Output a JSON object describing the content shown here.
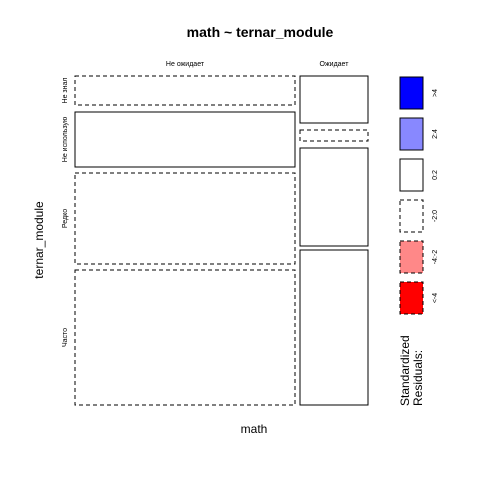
{
  "chart_data": {
    "type": "mosaic",
    "title": "math ~ ternar_module",
    "xlabel": "math",
    "ylabel": "ternar_module",
    "x_categories": [
      "Не ожидает",
      "Ожидает"
    ],
    "y_categories": [
      "Не знал",
      "Не использую",
      "Редко",
      "Часто"
    ],
    "cells": [
      {
        "y": "Не знал",
        "x": "Не ожидает",
        "residual_class": "-2:0"
      },
      {
        "y": "Не знал",
        "x": "Ожидает",
        "residual_class": "0:2"
      },
      {
        "y": "Не использую",
        "x": "Не ожидает",
        "residual_class": "0:2"
      },
      {
        "y": "Не использую",
        "x": "Ожидает",
        "residual_class": "-2:0"
      },
      {
        "y": "Редко",
        "x": "Не ожидает",
        "residual_class": "-2:0"
      },
      {
        "y": "Редко",
        "x": "Ожидает",
        "residual_class": "0:2"
      },
      {
        "y": "Часто",
        "x": "Не ожидает",
        "residual_class": "-2:0"
      },
      {
        "y": "Часто",
        "x": "Ожидает",
        "residual_class": "0:2"
      }
    ],
    "legend": {
      "title_lines": [
        "Standardized",
        "Residuals:"
      ],
      "placement": "right",
      "items": [
        {
          "label": ">4",
          "color": "#0000ff",
          "dashed": false
        },
        {
          "label": "2:4",
          "color": "#8888ff",
          "dashed": false
        },
        {
          "label": "0:2",
          "color": "#ffffff",
          "dashed": false
        },
        {
          "label": "-2:0",
          "color": "#ffffff",
          "dashed": true
        },
        {
          "label": "-4:-2",
          "color": "#ff8888",
          "dashed": true
        },
        {
          "label": "<-4",
          "color": "#ff0000",
          "dashed": true
        }
      ]
    }
  }
}
